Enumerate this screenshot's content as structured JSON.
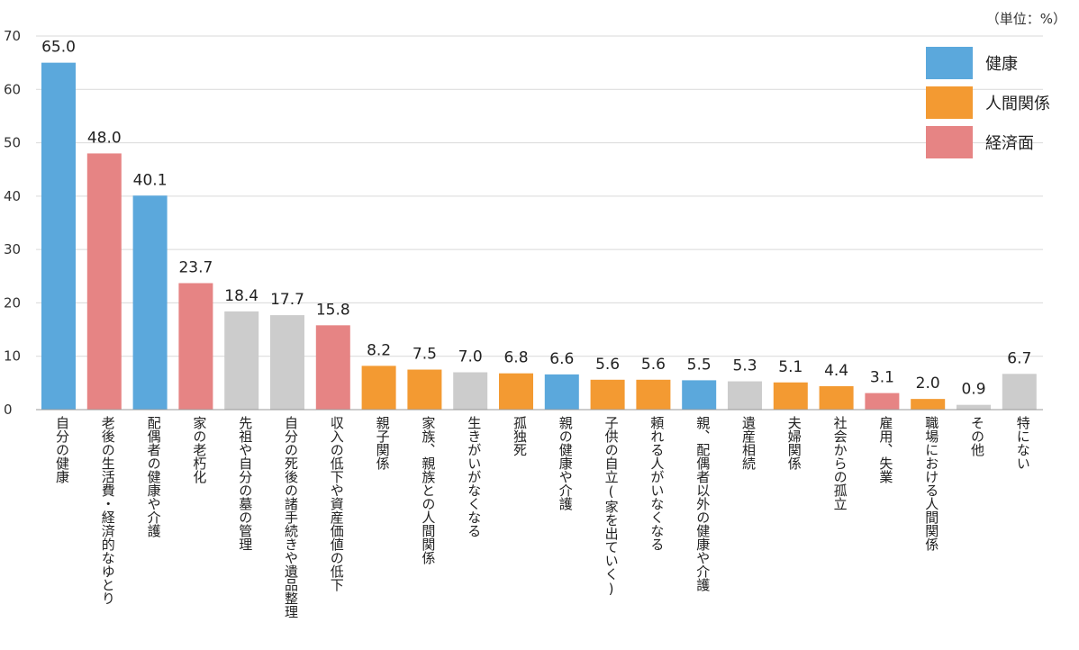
{
  "unit_note": "（単位：%）",
  "colors": {
    "health": "#5ba8dc",
    "relations": "#f39a32",
    "economy": "#e68484",
    "other": "#cccccc"
  },
  "chart_data": {
    "type": "bar",
    "ylim": [
      0,
      70
    ],
    "yticks": [
      0,
      10,
      20,
      30,
      40,
      50,
      60,
      70
    ],
    "grid": true,
    "legend_position": "top-right",
    "legend": [
      {
        "label": "健康",
        "group": "health"
      },
      {
        "label": "人間関係",
        "group": "relations"
      },
      {
        "label": "経済面",
        "group": "economy"
      }
    ],
    "categories": [
      "自分の健康",
      "老後の生活費・経済的なゆとり",
      "配偶者の健康や介護",
      "家の老朽化",
      "先祖や自分の墓の管理",
      "自分の死後の諸手続きや遺品整理",
      "収入の低下や資産価値の低下",
      "親子関係",
      "家族、親族との人間関係",
      "生きがいがなくなる",
      "孤独死",
      "親の健康や介護",
      "子供の自立(家を出ていく)",
      "頼れる人がいなくなる",
      "親、配偶者以外の健康や介護",
      "遺産相続",
      "夫婦関係",
      "社会からの孤立",
      "雇用、失業",
      "職場における人間関係",
      "その他",
      "特にない"
    ],
    "values": [
      65.0,
      48.0,
      40.1,
      23.7,
      18.4,
      17.7,
      15.8,
      8.2,
      7.5,
      7.0,
      6.8,
      6.6,
      5.6,
      5.6,
      5.5,
      5.3,
      5.1,
      4.4,
      3.1,
      2.0,
      0.9,
      6.7
    ],
    "value_labels": [
      "65.0",
      "48.0",
      "40.1",
      "23.7",
      "18.4",
      "17.7",
      "15.8",
      "8.2",
      "7.5",
      "7.0",
      "6.8",
      "6.6",
      "5.6",
      "5.6",
      "5.5",
      "5.3",
      "5.1",
      "4.4",
      "3.1",
      "2.0",
      "0.9",
      "6.7"
    ],
    "groups": [
      "health",
      "economy",
      "health",
      "economy",
      "other",
      "other",
      "economy",
      "relations",
      "relations",
      "other",
      "relations",
      "health",
      "relations",
      "relations",
      "health",
      "other",
      "relations",
      "relations",
      "economy",
      "relations",
      "other",
      "other"
    ]
  }
}
